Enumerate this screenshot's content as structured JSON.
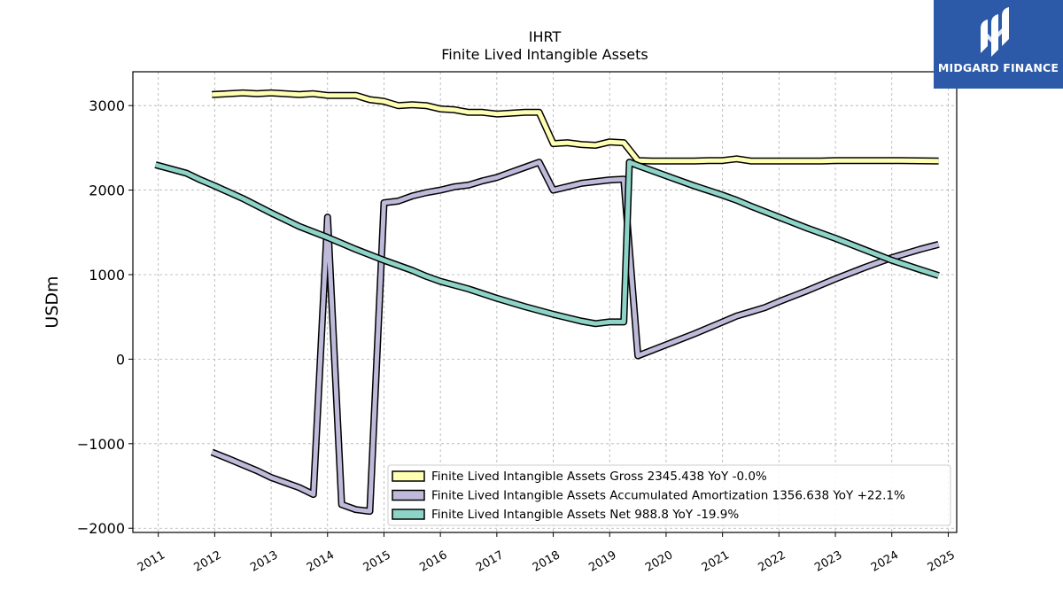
{
  "logo": {
    "text": "MIDGARD FINANCE",
    "icon": "midgard-m-logo-icon",
    "bg_color": "#2c5aa8"
  },
  "chart_data": {
    "type": "line",
    "title": "IHRT",
    "subtitle": "Finite Lived Intangible Assets",
    "ylabel": "USDm",
    "xlabel": "",
    "ylim": [
      -2050,
      3400
    ],
    "xlim": [
      2010.55,
      2025.15
    ],
    "yticks": [
      -2000,
      -1000,
      0,
      1000,
      2000,
      3000
    ],
    "ytick_labels": [
      "−2000",
      "−1000",
      "0",
      "1000",
      "2000",
      "3000"
    ],
    "xticks": [
      2011,
      2012,
      2013,
      2014,
      2015,
      2016,
      2017,
      2018,
      2019,
      2020,
      2021,
      2022,
      2023,
      2024,
      2025
    ],
    "xtick_labels": [
      "2011",
      "2012",
      "2013",
      "2014",
      "2015",
      "2016",
      "2017",
      "2018",
      "2019",
      "2020",
      "2021",
      "2022",
      "2023",
      "2024",
      "2025"
    ],
    "grid": true,
    "legend_position": "lower-right",
    "series": [
      {
        "name": "Finite Lived Intangible Assets Gross",
        "legend_label": "Finite Lived Intangible Assets Gross  2345.438 YoY -0.0%",
        "color": "#ffffb3",
        "x": [
          2011.95,
          2012.5,
          2012.75,
          2013.0,
          2013.5,
          2013.75,
          2014.0,
          2014.5,
          2014.75,
          2015.0,
          2015.25,
          2015.5,
          2015.75,
          2016.0,
          2016.25,
          2016.5,
          2016.75,
          2017.0,
          2017.25,
          2017.5,
          2017.75,
          2018.0,
          2018.25,
          2018.5,
          2018.75,
          2019.0,
          2019.25,
          2019.5,
          2019.75,
          2020.0,
          2020.5,
          2020.75,
          2021.0,
          2021.25,
          2021.5,
          2021.75,
          2022.0,
          2022.75,
          2023.0,
          2024.0,
          2024.83
        ],
        "y": [
          3130,
          3150,
          3140,
          3150,
          3130,
          3140,
          3120,
          3120,
          3070,
          3050,
          3000,
          3010,
          3000,
          2960,
          2950,
          2920,
          2920,
          2900,
          2910,
          2920,
          2920,
          2550,
          2560,
          2540,
          2530,
          2570,
          2560,
          2350,
          2345,
          2345,
          2345,
          2350,
          2350,
          2370,
          2345,
          2345,
          2345,
          2345,
          2350,
          2350,
          2345
        ]
      },
      {
        "name": "Finite Lived Intangible Assets Accumulated Amortization",
        "legend_label": "Finite Lived Intangible Assets Accumulated Amortization  1356.638 YoY +22.1%",
        "color": "#bebada",
        "x": [
          2011.95,
          2012.25,
          2012.5,
          2012.75,
          2013.0,
          2013.25,
          2013.5,
          2013.75,
          2014.0,
          2014.25,
          2014.5,
          2014.75,
          2015.0,
          2015.25,
          2015.5,
          2015.75,
          2016.0,
          2016.25,
          2016.5,
          2016.75,
          2017.0,
          2017.25,
          2017.5,
          2017.75,
          2018.0,
          2018.25,
          2018.5,
          2018.75,
          2019.0,
          2019.25,
          2019.5,
          2020.0,
          2020.5,
          2021.0,
          2021.25,
          2021.5,
          2021.75,
          2022.0,
          2022.5,
          2023.0,
          2023.5,
          2024.0,
          2024.5,
          2024.83
        ],
        "y": [
          -1100,
          -1180,
          -1250,
          -1320,
          -1400,
          -1460,
          -1520,
          -1600,
          1680,
          -1720,
          -1780,
          -1800,
          1850,
          1870,
          1930,
          1970,
          2000,
          2040,
          2060,
          2110,
          2150,
          2210,
          2270,
          2330,
          2000,
          2040,
          2080,
          2100,
          2120,
          2130,
          40,
          170,
          300,
          440,
          510,
          560,
          610,
          680,
          810,
          950,
          1080,
          1200,
          1300,
          1357
        ]
      },
      {
        "name": "Finite Lived Intangible Assets Net",
        "legend_label": "Finite Lived Intangible Assets Net  988.8 YoY -19.9%",
        "color": "#8dd3c7",
        "x": [
          2010.95,
          2011.5,
          2011.75,
          2012.0,
          2012.5,
          2013.0,
          2013.5,
          2014.0,
          2014.5,
          2015.0,
          2015.5,
          2015.75,
          2016.0,
          2016.5,
          2017.0,
          2017.5,
          2018.0,
          2018.5,
          2018.75,
          2019.0,
          2019.25,
          2019.35,
          2019.5,
          2020.0,
          2020.5,
          2021.0,
          2021.25,
          2021.5,
          2022.0,
          2022.5,
          2023.0,
          2023.5,
          2024.0,
          2024.5,
          2024.83
        ],
        "y": [
          2300,
          2200,
          2120,
          2050,
          1900,
          1730,
          1570,
          1440,
          1300,
          1170,
          1050,
          980,
          920,
          830,
          720,
          620,
          530,
          450,
          420,
          440,
          440,
          2330,
          2290,
          2170,
          2050,
          1940,
          1880,
          1810,
          1680,
          1550,
          1430,
          1300,
          1170,
          1060,
          989
        ]
      }
    ]
  }
}
